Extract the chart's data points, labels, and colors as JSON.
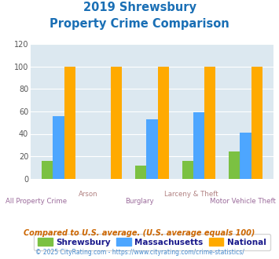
{
  "title_line1": "2019 Shrewsbury",
  "title_line2": "Property Crime Comparison",
  "categories": [
    "All Property Crime",
    "Arson",
    "Burglary",
    "Larceny & Theft",
    "Motor Vehicle Theft"
  ],
  "shrewsbury": [
    16,
    0,
    12,
    16,
    24
  ],
  "massachusetts": [
    56,
    0,
    53,
    59,
    41
  ],
  "national": [
    100,
    100,
    100,
    100,
    100
  ],
  "color_shrewsbury": "#7bc142",
  "color_massachusetts": "#4da6ff",
  "color_national": "#ffaa00",
  "ylim": [
    0,
    120
  ],
  "yticks": [
    0,
    20,
    40,
    60,
    80,
    100,
    120
  ],
  "bg_color": "#dce8f0",
  "title_color": "#1a6fb5",
  "xlabel_color_upper": "#b08080",
  "xlabel_color_lower": "#9b6b9b",
  "legend_label_shrewsbury": "Shrewsbury",
  "legend_label_massachusetts": "Massachusetts",
  "legend_label_national": "National",
  "footnote1": "Compared to U.S. average. (U.S. average equals 100)",
  "footnote2": "© 2025 CityRating.com - https://www.cityrating.com/crime-statistics/",
  "footnote1_color": "#cc6600",
  "footnote2_color": "#4488cc"
}
